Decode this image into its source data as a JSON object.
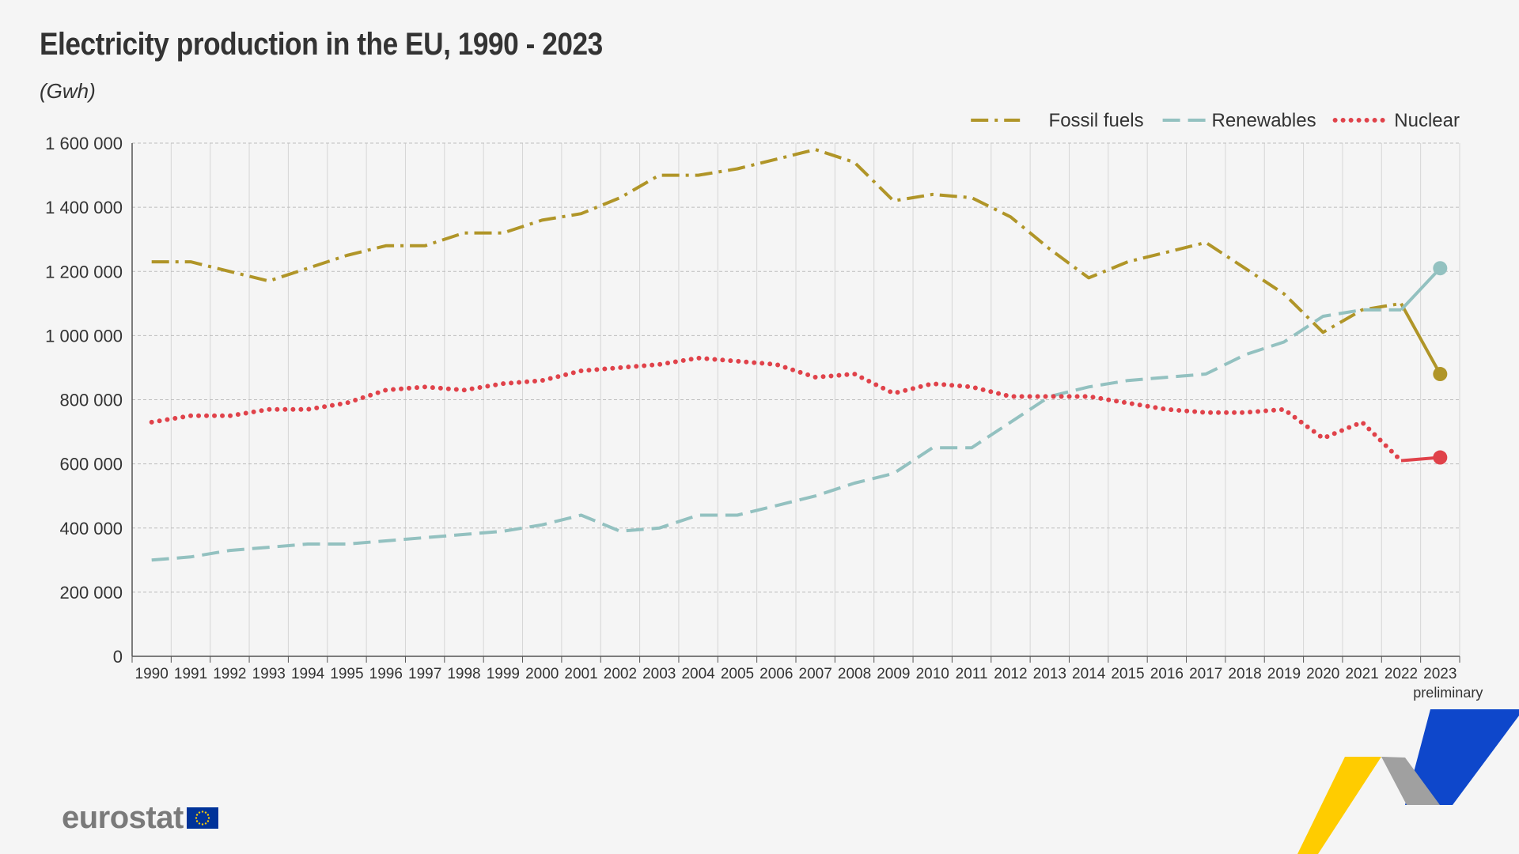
{
  "page": {
    "title": "Electricity production in the EU, 1990 - 2023",
    "unit": "(Gwh)",
    "footer_brand": "eurostat"
  },
  "colors": {
    "fossil": "#b09528",
    "renewables": "#93c1c0",
    "nuclear": "#e0424a",
    "grid": "#bdbdbd",
    "axis": "#555555",
    "logo_yellow": "#ffcc00",
    "logo_blue": "#0e47cb",
    "logo_grey": "#a0a0a0"
  },
  "chart_data": {
    "type": "line",
    "title": "Electricity production in the EU, 1990 - 2023",
    "ylabel": "(Gwh)",
    "xlabel": "",
    "ylim": [
      0,
      1600000
    ],
    "yticks": [
      0,
      200000,
      400000,
      600000,
      800000,
      1000000,
      1200000,
      1400000,
      1600000
    ],
    "ytick_labels": [
      "0",
      "200 000",
      "400 000",
      "600 000",
      "800 000",
      "1 000 000",
      "1 200 000",
      "1 400 000",
      "1 600 000"
    ],
    "grid": true,
    "legend_position": "top-right",
    "categories": [
      "1990",
      "1991",
      "1992",
      "1993",
      "1994",
      "1995",
      "1996",
      "1997",
      "1998",
      "1999",
      "2000",
      "2001",
      "2002",
      "2003",
      "2004",
      "2005",
      "2006",
      "2007",
      "2008",
      "2009",
      "2010",
      "2011",
      "2012",
      "2013",
      "2014",
      "2015",
      "2016",
      "2017",
      "2018",
      "2019",
      "2020",
      "2021",
      "2022",
      "2023"
    ],
    "annotations": [
      {
        "category": "2023",
        "text": "preliminary"
      }
    ],
    "series": [
      {
        "name": "Fossil fuels",
        "style": "dash-dot",
        "color_key": "fossil",
        "values": [
          1230000,
          1230000,
          1200000,
          1170000,
          1210000,
          1250000,
          1280000,
          1280000,
          1320000,
          1320000,
          1360000,
          1380000,
          1430000,
          1500000,
          1500000,
          1520000,
          1550000,
          1580000,
          1540000,
          1420000,
          1440000,
          1430000,
          1370000,
          1270000,
          1180000,
          1230000,
          1260000,
          1290000,
          1210000,
          1130000,
          1010000,
          1080000,
          1100000,
          880000
        ]
      },
      {
        "name": "Renewables",
        "style": "dashed",
        "color_key": "renewables",
        "values": [
          300000,
          310000,
          330000,
          340000,
          350000,
          350000,
          360000,
          370000,
          380000,
          390000,
          410000,
          440000,
          390000,
          400000,
          440000,
          440000,
          470000,
          500000,
          540000,
          570000,
          650000,
          650000,
          730000,
          810000,
          840000,
          860000,
          870000,
          880000,
          940000,
          980000,
          1060000,
          1080000,
          1080000,
          1210000
        ]
      },
      {
        "name": "Nuclear",
        "style": "dotted",
        "color_key": "nuclear",
        "values": [
          730000,
          750000,
          750000,
          770000,
          770000,
          790000,
          830000,
          840000,
          830000,
          850000,
          860000,
          890000,
          900000,
          910000,
          930000,
          920000,
          910000,
          870000,
          880000,
          820000,
          850000,
          840000,
          810000,
          810000,
          810000,
          790000,
          770000,
          760000,
          760000,
          770000,
          680000,
          730000,
          610000,
          620000
        ]
      }
    ]
  }
}
